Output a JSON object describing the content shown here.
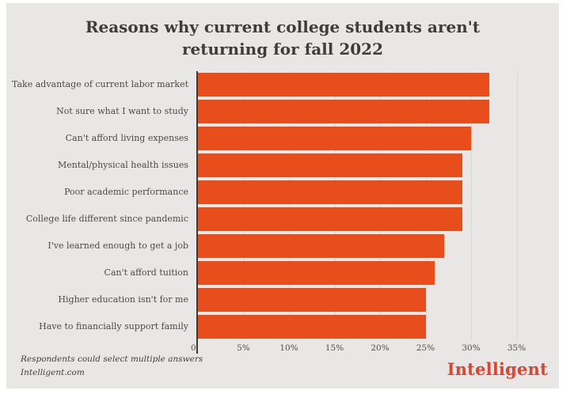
{
  "title": "Reasons why current college students aren't returning for fall 2022",
  "footnotes": {
    "line1": "Respondents could select multiple answers",
    "line2": "Intelligent.com"
  },
  "brand": "Intelligent",
  "colors": {
    "bar": "#e84e1b",
    "panel_background": "#e8e7e5",
    "title_text": "#3d3d3d",
    "label_text": "#4a4a4a",
    "axis_line": "#3a3a3a",
    "gridline": "#d9d7d4",
    "brand_text": "#de4430"
  },
  "chart_data": {
    "type": "bar",
    "orientation": "horizontal",
    "title": "Reasons why current college students aren't returning for fall 2022",
    "categories": [
      "Take advantage of current labor market",
      "Not sure what I want to study",
      "Can't afford living expenses",
      "Mental/physical health issues",
      "Poor academic performance",
      "College life different since pandemic",
      "I've learned enough to get a job",
      "Can't afford tuition",
      "Higher education isn't for me",
      "Have to financially support family"
    ],
    "values": [
      32,
      32,
      30,
      29,
      29,
      29,
      27,
      26,
      25,
      25
    ],
    "unit": "%",
    "xlabel": "",
    "ylabel": "",
    "x_ticks": [
      "0",
      "5%",
      "10%",
      "15%",
      "20%",
      "25%",
      "30%",
      "35%"
    ],
    "xlim": [
      0,
      36.5
    ],
    "grid": true,
    "legend": false,
    "note": "Respondents could select multiple answers",
    "source": "Intelligent.com"
  }
}
